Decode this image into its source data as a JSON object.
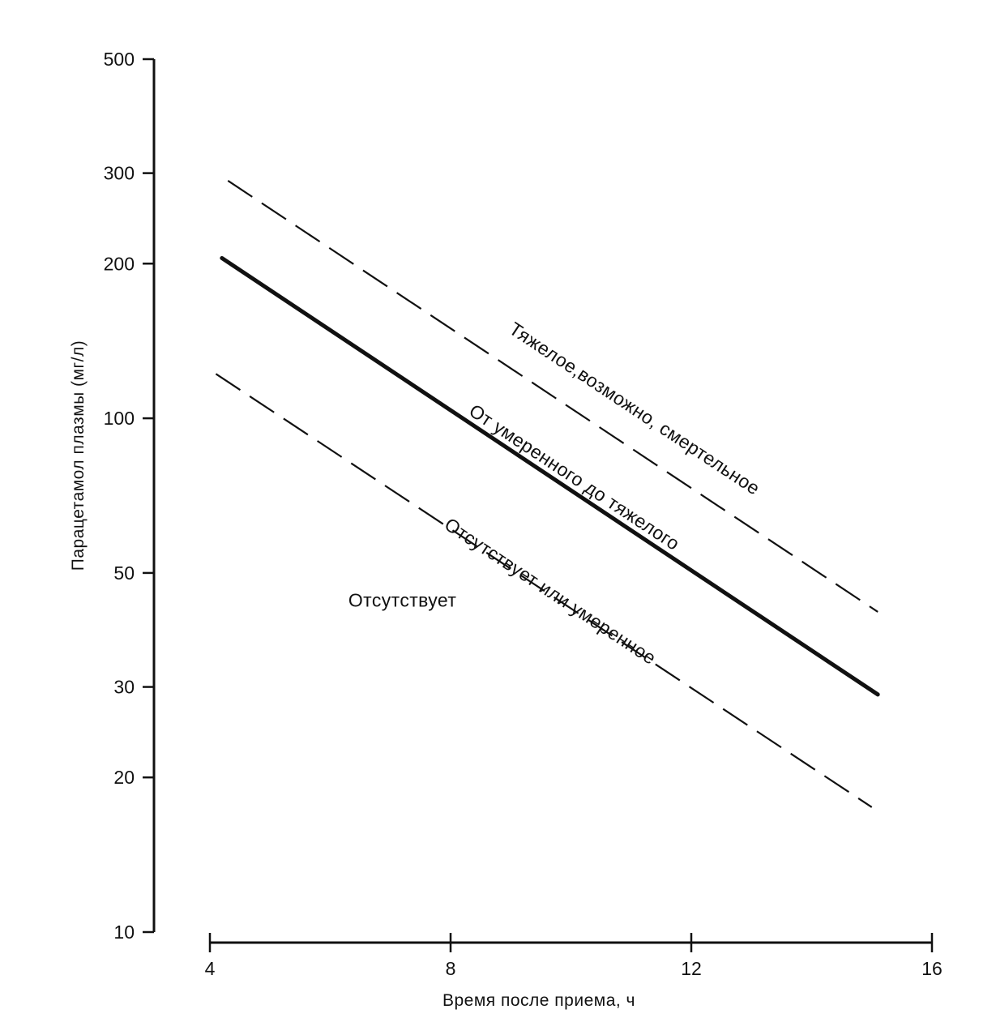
{
  "chart_data": {
    "type": "line",
    "title": "",
    "xlabel": "Время после приема, ч",
    "ylabel": "Парацетамол плазмы (мг/л)",
    "x_scale": "linear",
    "y_scale": "log",
    "xlim": [
      4,
      16
    ],
    "ylim": [
      10,
      500
    ],
    "x_ticks": [
      4,
      8,
      12,
      16
    ],
    "x_tick_labels": [
      "4",
      "8",
      "12",
      "16"
    ],
    "y_ticks": [
      10,
      20,
      30,
      50,
      100,
      200,
      300,
      500
    ],
    "y_tick_labels": [
      "10",
      "20",
      "30",
      "50",
      "100",
      "200",
      "300",
      "500"
    ],
    "grid": false,
    "legend": "none",
    "series": [
      {
        "line_style": "dashed",
        "color": "#111111",
        "x": [
          4.3,
          15.1
        ],
        "y": [
          290,
          42
        ]
      },
      {
        "line_style": "solid",
        "color": "#111111",
        "x": [
          4.2,
          15.1
        ],
        "y": [
          205,
          29
        ]
      },
      {
        "line_style": "dashed",
        "color": "#111111",
        "x": [
          4.1,
          15.0
        ],
        "y": [
          122,
          17.5
        ]
      }
    ],
    "annotations": [
      {
        "text": "Тяжелое,возможно, смертельное",
        "x": 11.0,
        "y": 102
      },
      {
        "text": "От умеренного до тяжелого",
        "x": 10.0,
        "y": 75
      },
      {
        "text": "Отсутствует или умеренное",
        "x": 9.6,
        "y": 45
      },
      {
        "text": "Отсутствует",
        "x": 7.2,
        "y": 43
      }
    ]
  }
}
